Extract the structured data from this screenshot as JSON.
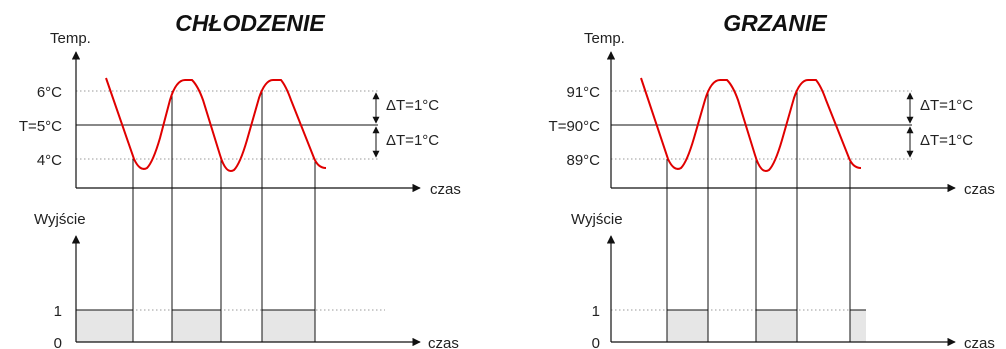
{
  "colors": {
    "curve": "#e00000",
    "fill": "#e6e6e6",
    "axis": "#111111",
    "grid": "#999999"
  },
  "panels": [
    {
      "title": "CHŁODZENIE",
      "temp_axis_label": "Temp.",
      "upper_label": "6°C",
      "setpoint_label": "T=5°C",
      "lower_label": "4°C",
      "delta_upper": "ΔT=1°C",
      "delta_lower": "ΔT=1°C",
      "time_label_top": "czas",
      "output_axis_label": "Wyjście",
      "output_one": "1",
      "output_zero": "0",
      "time_label_bottom": "czas",
      "output_states": [
        "ON",
        "OFF",
        "ON",
        "OFF",
        "ON"
      ]
    },
    {
      "title": "GRZANIE",
      "temp_axis_label": "Temp.",
      "upper_label": "91°C",
      "setpoint_label": "T=90°C",
      "lower_label": "89°C",
      "delta_upper": "ΔT=1°C",
      "delta_lower": "ΔT=1°C",
      "time_label_top": "czas",
      "output_axis_label": "Wyjście",
      "output_one": "1",
      "output_zero": "0",
      "time_label_bottom": "czas",
      "output_states": [
        "OFF",
        "ON",
        "OFF",
        "ON",
        "OFF",
        "ON"
      ]
    }
  ]
}
